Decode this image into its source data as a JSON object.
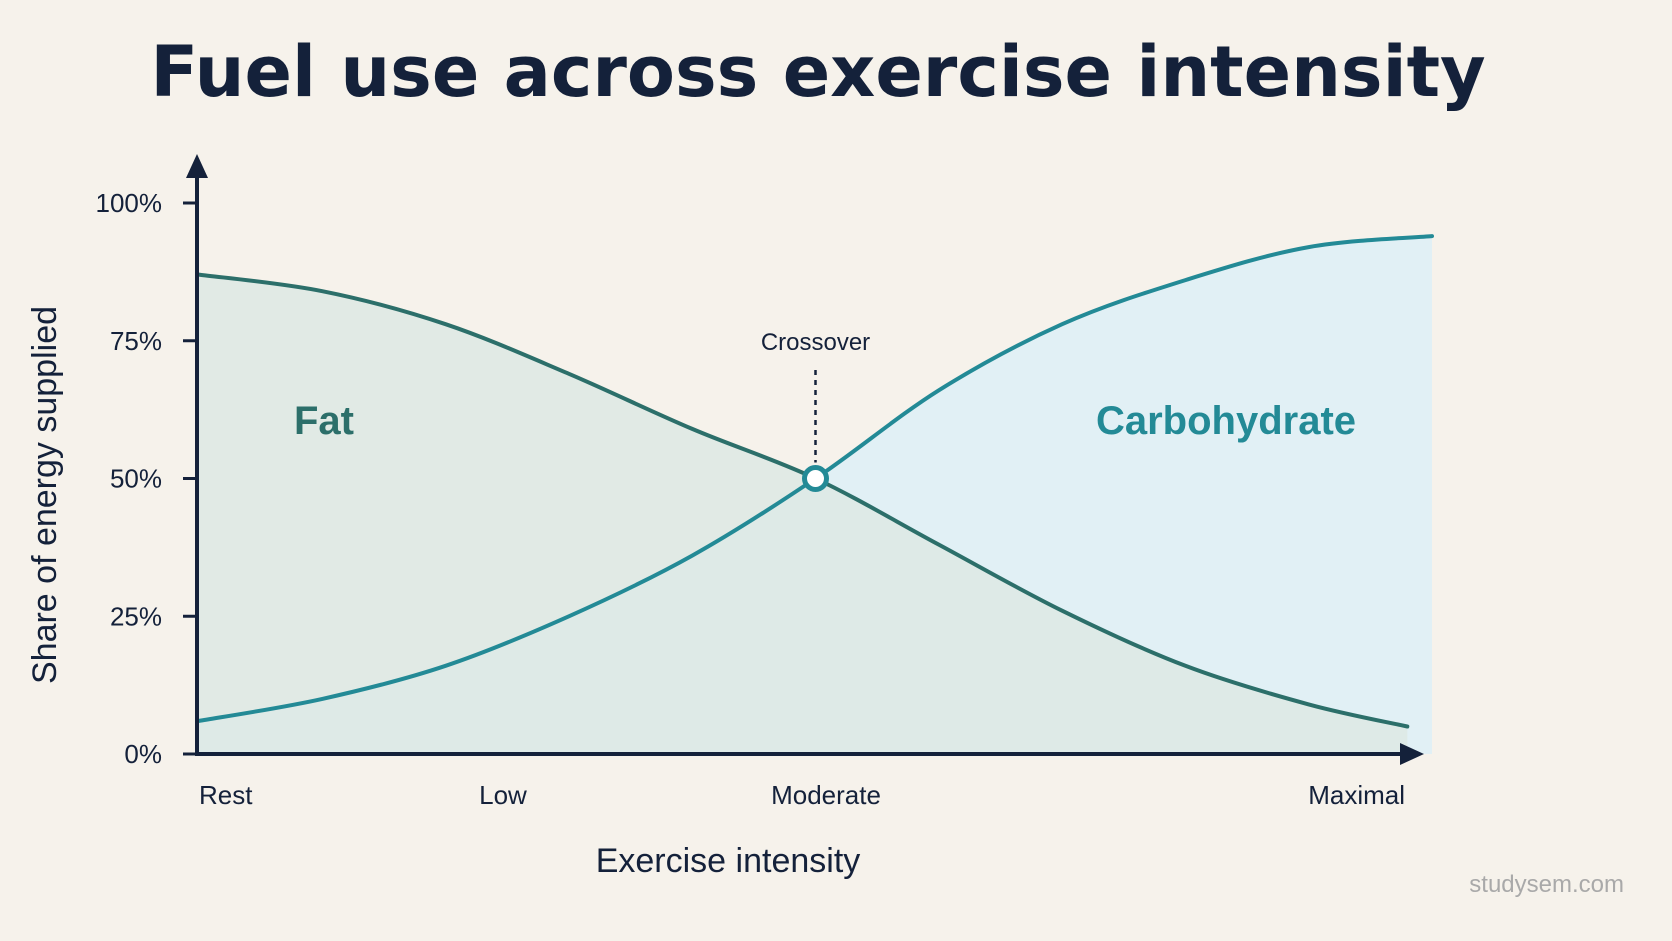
{
  "chart_data": {
    "type": "area",
    "title": "Fuel use across exercise intensity",
    "xlabel": "Exercise intensity",
    "ylabel": "Share of energy supplied",
    "x_categories": [
      "Rest",
      "Low",
      "Moderate",
      "Maximal"
    ],
    "x_category_positions": [
      0,
      0.25,
      0.5,
      1
    ],
    "ylim": [
      0,
      100
    ],
    "y_ticks": [
      "0%",
      "25%",
      "50%",
      "75%",
      "100%"
    ],
    "y_tick_values": [
      0,
      25,
      50,
      75,
      100
    ],
    "grid": false,
    "legend": "none",
    "series": [
      {
        "name": "Fat",
        "color": "#2c6f6a",
        "fill": "#dde9e4",
        "x": [
          0,
          0.1,
          0.2,
          0.3,
          0.4,
          0.5,
          0.6,
          0.7,
          0.8,
          0.9,
          0.98
        ],
        "values": [
          87,
          84,
          78,
          69,
          59,
          50,
          38,
          26,
          16,
          9,
          5
        ]
      },
      {
        "name": "Carbohydrate",
        "color": "#238a96",
        "fill": "#e1f0f5",
        "x": [
          0,
          0.1,
          0.2,
          0.3,
          0.4,
          0.5,
          0.6,
          0.7,
          0.8,
          0.9,
          1.0
        ],
        "values": [
          6,
          10,
          16,
          25,
          36,
          50,
          66,
          78,
          86,
          92,
          94
        ]
      }
    ],
    "annotations": [
      {
        "text": "Crossover",
        "x": 0.5,
        "y": 50
      }
    ]
  },
  "watermark": "studysem.com",
  "colors": {
    "background": "#f6f2eb",
    "axis": "#14213a",
    "fat_label": "#2c6f6a",
    "carb_label": "#238a96"
  }
}
